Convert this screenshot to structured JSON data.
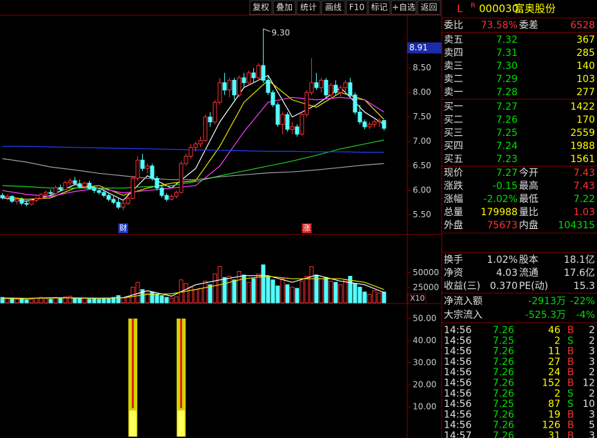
{
  "toolbar": [
    "复权",
    "叠加",
    "统计",
    "画线",
    "F10",
    "标记",
    "+自选",
    "返回"
  ],
  "header": {
    "flag": "L",
    "badge": "R",
    "code": "000030",
    "name": "富奥股份"
  },
  "quote": {
    "ratio_row": [
      "委比",
      "73.58%",
      "委差",
      "6528"
    ],
    "asks": [
      [
        "卖五",
        "7.32",
        "367"
      ],
      [
        "卖四",
        "7.31",
        "285"
      ],
      [
        "卖三",
        "7.30",
        "140"
      ],
      [
        "卖二",
        "7.29",
        "103"
      ],
      [
        "卖一",
        "7.28",
        "277"
      ]
    ],
    "bids": [
      [
        "买一",
        "7.27",
        "1422"
      ],
      [
        "买二",
        "7.26",
        "170"
      ],
      [
        "买三",
        "7.25",
        "2559"
      ],
      [
        "买四",
        "7.24",
        "1988"
      ],
      [
        "买五",
        "7.23",
        "1561"
      ]
    ],
    "stats": [
      [
        "现价",
        "7.27",
        "今开",
        "7.43"
      ],
      [
        "涨跌",
        "-0.15",
        "最高",
        "7.43"
      ],
      [
        "涨幅",
        "-2.02%",
        "最低",
        "7.22"
      ],
      [
        "总量",
        "179988",
        "量比",
        "1.03"
      ],
      [
        "外盘",
        "75673",
        "内盘",
        "104315"
      ]
    ],
    "fundamentals": [
      [
        "换手",
        "1.02%",
        "股本",
        "18.1亿"
      ],
      [
        "净资",
        "4.03",
        "流通",
        "17.6亿"
      ],
      [
        "收益(三)",
        "0.370",
        "PE(动)",
        "15.3"
      ]
    ],
    "flows": [
      [
        "净流入额",
        "-2913万",
        "-22%"
      ],
      [
        "大宗流入",
        "-525.3万",
        "-4%"
      ]
    ],
    "trades": [
      [
        "14:56",
        "7.26",
        "46",
        "B",
        "2"
      ],
      [
        "14:56",
        "7.25",
        "2",
        "S",
        "2"
      ],
      [
        "14:56",
        "7.26",
        "11",
        "B",
        "3"
      ],
      [
        "14:56",
        "7.26",
        "27",
        "B",
        "3"
      ],
      [
        "14:56",
        "7.26",
        "24",
        "B",
        "2"
      ],
      [
        "14:56",
        "7.26",
        "152",
        "B",
        "12"
      ],
      [
        "14:56",
        "7.26",
        "2",
        "S",
        "2"
      ],
      [
        "14:56",
        "7.25",
        "87",
        "S",
        "10"
      ],
      [
        "14:56",
        "7.26",
        "19",
        "B",
        "3"
      ],
      [
        "14:56",
        "7.26",
        "126",
        "B",
        "5"
      ],
      [
        "14:57",
        "7.26",
        "31",
        "B",
        "3"
      ]
    ]
  },
  "chart_data": [
    {
      "type": "candlestick",
      "xlim": [
        -0.5,
        83.8
      ],
      "ylim": [
        5.13,
        9.55
      ],
      "yticks": [
        {
          "value": 5.5,
          "label": "5.50"
        },
        {
          "value": 6,
          "label": "6.00"
        },
        {
          "value": 6.5,
          "label": "6.50"
        },
        {
          "value": 7,
          "label": "7.00"
        },
        {
          "value": 7.5,
          "label": "7.50"
        },
        {
          "value": 8,
          "label": "8.00"
        },
        {
          "value": 8.5,
          "label": "8.50"
        }
      ],
      "up_color": "#ff3232",
      "down_color": "#54ffff",
      "pointer": 8.91,
      "annotations": [
        {
          "value": 9.3,
          "label": "9.30",
          "x": 54
        }
      ],
      "markers": [
        {
          "text": "财",
          "x": 25,
          "color": "#1a3cc8"
        },
        {
          "text": "涨",
          "x": 63,
          "color": "#c82828"
        }
      ],
      "candles": [
        [
          5.9,
          5.95,
          5.82,
          5.85
        ],
        [
          5.85,
          5.92,
          5.8,
          5.88
        ],
        [
          5.88,
          5.9,
          5.75,
          5.78
        ],
        [
          5.78,
          5.85,
          5.72,
          5.82
        ],
        [
          5.82,
          5.86,
          5.7,
          5.74
        ],
        [
          5.74,
          5.8,
          5.68,
          5.72
        ],
        [
          5.72,
          5.82,
          5.7,
          5.8
        ],
        [
          5.8,
          5.88,
          5.76,
          5.84
        ],
        [
          5.84,
          5.95,
          5.82,
          5.92
        ],
        [
          5.92,
          6.0,
          5.88,
          5.96
        ],
        [
          5.96,
          6.02,
          5.9,
          5.94
        ],
        [
          5.94,
          6.1,
          5.92,
          6.06
        ],
        [
          6.06,
          6.12,
          5.98,
          6.02
        ],
        [
          6.02,
          6.2,
          6.0,
          6.16
        ],
        [
          6.16,
          6.25,
          6.1,
          6.2
        ],
        [
          6.2,
          6.28,
          6.12,
          6.14
        ],
        [
          6.14,
          6.22,
          6.05,
          6.08
        ],
        [
          6.08,
          6.18,
          6.04,
          6.15
        ],
        [
          6.15,
          6.2,
          6.02,
          6.04
        ],
        [
          6.04,
          6.1,
          5.95,
          6.0
        ],
        [
          6.0,
          6.06,
          5.92,
          5.96
        ],
        [
          5.96,
          6.02,
          5.86,
          5.9
        ],
        [
          5.9,
          5.95,
          5.78,
          5.82
        ],
        [
          5.82,
          5.88,
          5.72,
          5.76
        ],
        [
          5.76,
          5.84,
          5.62,
          5.66
        ],
        [
          5.66,
          5.8,
          5.6,
          5.74
        ],
        [
          5.74,
          5.88,
          5.7,
          5.84
        ],
        [
          5.84,
          6.3,
          5.82,
          6.25
        ],
        [
          6.25,
          6.7,
          6.2,
          6.62
        ],
        [
          6.62,
          6.75,
          6.4,
          6.45
        ],
        [
          6.45,
          6.55,
          6.35,
          6.5
        ],
        [
          6.5,
          6.55,
          6.2,
          6.25
        ],
        [
          6.25,
          6.3,
          6.0,
          6.05
        ],
        [
          6.05,
          6.1,
          5.85,
          5.9
        ],
        [
          5.9,
          5.95,
          5.78,
          5.82
        ],
        [
          5.82,
          5.92,
          5.8,
          5.88
        ],
        [
          5.88,
          6.0,
          5.84,
          5.96
        ],
        [
          5.96,
          6.6,
          5.94,
          6.55
        ],
        [
          6.55,
          6.75,
          6.5,
          6.7
        ],
        [
          6.7,
          6.95,
          6.65,
          6.88
        ],
        [
          6.88,
          7.0,
          6.8,
          6.95
        ],
        [
          6.95,
          7.1,
          6.88,
          7.02
        ],
        [
          7.02,
          7.55,
          7.0,
          7.5
        ],
        [
          7.5,
          7.6,
          7.3,
          7.4
        ],
        [
          7.4,
          7.85,
          7.35,
          7.8
        ],
        [
          7.8,
          8.3,
          7.75,
          8.2
        ],
        [
          8.2,
          8.4,
          7.95,
          8.05
        ],
        [
          8.05,
          8.3,
          7.9,
          8.25
        ],
        [
          8.25,
          8.3,
          7.85,
          7.95
        ],
        [
          7.95,
          8.35,
          7.9,
          8.3
        ],
        [
          8.3,
          8.4,
          8.1,
          8.2
        ],
        [
          8.2,
          8.45,
          8.15,
          8.4
        ],
        [
          8.4,
          8.5,
          8.2,
          8.3
        ],
        [
          8.3,
          8.6,
          8.25,
          8.55
        ],
        [
          8.55,
          9.3,
          8.2,
          8.25
        ],
        [
          8.25,
          8.35,
          7.95,
          8.0
        ],
        [
          8.0,
          8.05,
          7.7,
          7.75
        ],
        [
          7.75,
          7.8,
          7.3,
          7.35
        ],
        [
          7.35,
          7.6,
          7.15,
          7.55
        ],
        [
          7.55,
          7.6,
          7.2,
          7.25
        ],
        [
          7.25,
          7.4,
          7.15,
          7.3
        ],
        [
          7.3,
          7.35,
          7.1,
          7.15
        ],
        [
          7.15,
          7.6,
          7.12,
          7.55
        ],
        [
          7.55,
          8.05,
          7.5,
          8.0
        ],
        [
          8.0,
          8.7,
          7.95,
          8.2
        ],
        [
          8.2,
          8.4,
          8.05,
          8.1
        ],
        [
          8.1,
          8.3,
          8.0,
          8.25
        ],
        [
          8.25,
          8.3,
          7.9,
          7.95
        ],
        [
          7.95,
          8.2,
          7.9,
          8.15
        ],
        [
          8.15,
          8.25,
          7.95,
          8.0
        ],
        [
          8.0,
          8.15,
          7.92,
          8.1
        ],
        [
          8.1,
          8.25,
          8.0,
          8.2
        ],
        [
          8.2,
          8.3,
          7.9,
          7.95
        ],
        [
          7.95,
          8.0,
          7.55,
          7.6
        ],
        [
          7.6,
          7.75,
          7.35,
          7.4
        ],
        [
          7.4,
          7.45,
          7.25,
          7.3
        ],
        [
          7.3,
          7.4,
          7.25,
          7.35
        ],
        [
          7.35,
          7.45,
          7.28,
          7.4
        ],
        [
          7.4,
          7.48,
          7.3,
          7.42
        ],
        [
          7.43,
          7.43,
          7.22,
          7.27
        ]
      ],
      "series": [
        {
          "color": "#ffffff",
          "x": [
            0,
            5,
            10,
            15,
            20,
            25,
            30,
            35,
            40,
            45,
            50,
            55,
            60,
            65,
            70,
            75,
            79
          ],
          "values": [
            5.85,
            5.78,
            5.9,
            6.12,
            6.05,
            5.8,
            6.3,
            6.05,
            6.45,
            7.4,
            8.1,
            8.35,
            7.5,
            7.75,
            8.1,
            7.6,
            7.35
          ]
        },
        {
          "color": "#e8e800",
          "x": [
            0,
            5,
            10,
            15,
            20,
            25,
            30,
            35,
            40,
            45,
            50,
            55,
            60,
            65,
            70,
            75,
            79
          ],
          "values": [
            5.88,
            5.82,
            5.85,
            6.05,
            6.1,
            5.9,
            6.05,
            6.15,
            6.2,
            6.9,
            7.8,
            8.25,
            7.85,
            7.7,
            8.0,
            7.85,
            7.45
          ]
        },
        {
          "color": "#ff40ff",
          "x": [
            0,
            5,
            10,
            15,
            20,
            25,
            30,
            35,
            40,
            45,
            50,
            55,
            60,
            65,
            70,
            75,
            79
          ],
          "values": [
            6.0,
            5.92,
            5.88,
            5.98,
            6.05,
            5.95,
            6.0,
            6.05,
            6.1,
            6.5,
            7.2,
            7.8,
            7.9,
            7.85,
            7.9,
            7.85,
            7.6
          ]
        },
        {
          "color": "#20d020",
          "x": [
            0,
            5,
            10,
            15,
            20,
            25,
            30,
            35,
            40,
            45,
            50,
            55,
            60,
            65,
            70,
            75,
            79
          ],
          "values": [
            6.1,
            6.08,
            6.05,
            6.05,
            6.05,
            6.05,
            6.08,
            6.1,
            6.18,
            6.3,
            6.4,
            6.5,
            6.6,
            6.72,
            6.85,
            6.95,
            7.03
          ]
        },
        {
          "color": "#a0a0a0",
          "x": [
            0,
            5,
            10,
            15,
            20,
            25,
            30,
            35,
            40,
            45,
            50,
            55,
            60,
            65,
            70,
            75,
            79
          ],
          "values": [
            6.65,
            6.58,
            6.48,
            6.42,
            6.35,
            6.3,
            6.25,
            6.22,
            6.22,
            6.28,
            6.32,
            6.36,
            6.38,
            6.42,
            6.47,
            6.52,
            6.55
          ]
        },
        {
          "color": "#2040ff",
          "x": [
            0,
            5,
            10,
            15,
            20,
            25,
            30,
            35,
            40,
            45,
            50,
            55,
            60,
            65,
            70,
            75,
            79
          ],
          "values": [
            6.9,
            6.9,
            6.89,
            6.88,
            6.87,
            6.86,
            6.85,
            6.84,
            6.83,
            6.82,
            6.81,
            6.8,
            6.8,
            6.79,
            6.79,
            6.78,
            6.78
          ]
        }
      ]
    },
    {
      "type": "bar",
      "xlim": [
        -0.5,
        83.8
      ],
      "ylim": [
        0,
        111000
      ],
      "yticks": [
        25000,
        50000
      ],
      "unit_label": "X10",
      "values": [
        9000,
        7000,
        8000,
        6000,
        7000,
        5000,
        6000,
        8000,
        9000,
        7000,
        6000,
        9000,
        7000,
        10000,
        11000,
        8000,
        7000,
        8000,
        6000,
        7000,
        6000,
        8000,
        7000,
        9000,
        12000,
        8000,
        10000,
        26000,
        34000,
        22000,
        16000,
        18000,
        14000,
        12000,
        9000,
        8000,
        10000,
        38000,
        32000,
        26000,
        22000,
        24000,
        36000,
        30000,
        48000,
        60000,
        42000,
        44000,
        38000,
        52000,
        46000,
        34000,
        40000,
        48000,
        63000,
        44000,
        38000,
        28000,
        40000,
        30000,
        26000,
        24000,
        36000,
        44000,
        60000,
        46000,
        40000,
        42000,
        36000,
        34000,
        30000,
        38000,
        44000,
        32000,
        26000,
        18000,
        14000,
        20000,
        16000,
        18000
      ],
      "series": [
        {
          "color": "#ffffff",
          "x": [
            0,
            5,
            10,
            15,
            20,
            25,
            30,
            35,
            40,
            45,
            50,
            55,
            60,
            65,
            70,
            75,
            79
          ],
          "values": [
            7500,
            7000,
            8500,
            8000,
            7500,
            8500,
            20000,
            11000,
            30000,
            38000,
            45000,
            45000,
            34000,
            46000,
            36000,
            30000,
            17000
          ]
        },
        {
          "color": "#e8e800",
          "x": [
            0,
            5,
            10,
            15,
            20,
            25,
            30,
            35,
            40,
            45,
            50,
            55,
            60,
            65,
            70,
            75,
            79
          ],
          "values": [
            8000,
            7500,
            8000,
            8200,
            7800,
            8200,
            14000,
            15000,
            22000,
            30000,
            40000,
            44000,
            40000,
            40000,
            40000,
            34000,
            22000
          ]
        }
      ]
    },
    {
      "type": "bar",
      "xlim": [
        -0.5,
        83.8
      ],
      "ylim": [
        -3.4,
        56.2
      ],
      "yticks": [
        {
          "value": 10,
          "label": "10.00"
        },
        {
          "value": 20,
          "label": "20.00"
        },
        {
          "value": 30,
          "label": "30.00"
        },
        {
          "value": 40,
          "label": "40.00"
        },
        {
          "value": 50,
          "label": "50.00"
        }
      ],
      "x": [
        27,
        37
      ],
      "values": [
        50,
        50
      ],
      "color": "#d4d400"
    }
  ]
}
